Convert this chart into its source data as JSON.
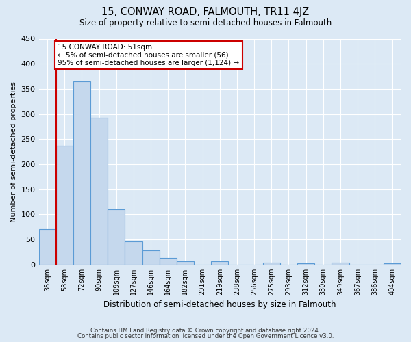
{
  "title": "15, CONWAY ROAD, FALMOUTH, TR11 4JZ",
  "subtitle": "Size of property relative to semi-detached houses in Falmouth",
  "xlabel": "Distribution of semi-detached houses by size in Falmouth",
  "ylabel": "Number of semi-detached properties",
  "bin_labels": [
    "35sqm",
    "53sqm",
    "72sqm",
    "90sqm",
    "109sqm",
    "127sqm",
    "146sqm",
    "164sqm",
    "182sqm",
    "201sqm",
    "219sqm",
    "238sqm",
    "256sqm",
    "275sqm",
    "293sqm",
    "312sqm",
    "330sqm",
    "349sqm",
    "367sqm",
    "386sqm",
    "404sqm"
  ],
  "bar_heights": [
    70,
    237,
    365,
    292,
    110,
    46,
    28,
    14,
    7,
    0,
    6,
    0,
    0,
    4,
    0,
    2,
    0,
    4,
    0,
    0,
    3
  ],
  "bar_color": "#c5d8ed",
  "bar_edge_color": "#5b9bd5",
  "ylim": [
    0,
    450
  ],
  "yticks": [
    0,
    50,
    100,
    150,
    200,
    250,
    300,
    350,
    400,
    450
  ],
  "property_line_x": 1,
  "annotation_title": "15 CONWAY ROAD: 51sqm",
  "annotation_line1": "← 5% of semi-detached houses are smaller (56)",
  "annotation_line2": "95% of semi-detached houses are larger (1,124) →",
  "annotation_box_color": "#ffffff",
  "annotation_box_edgecolor": "#cc0000",
  "property_line_color": "#cc0000",
  "footer1": "Contains HM Land Registry data © Crown copyright and database right 2024.",
  "footer2": "Contains public sector information licensed under the Open Government Licence v3.0.",
  "background_color": "#dce9f5",
  "plot_bg_color": "#dce9f5",
  "grid_color": "#ffffff"
}
